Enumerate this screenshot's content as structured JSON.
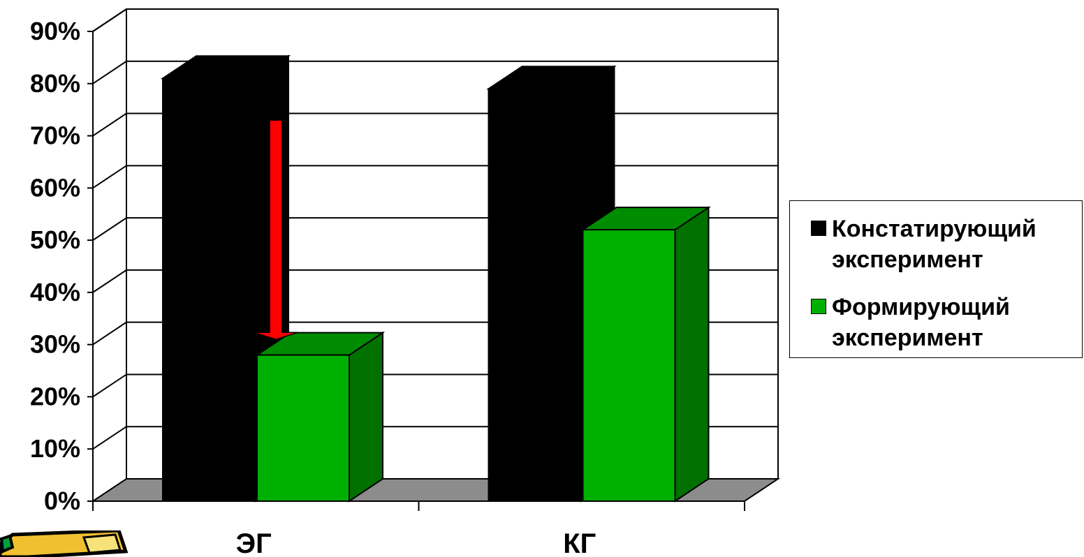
{
  "chart_data": {
    "type": "bar",
    "style": "3d-clustered-column",
    "categories": [
      "ЭГ",
      "КГ"
    ],
    "series": [
      {
        "name": "Констатирующий эксперимент",
        "color": "#000000",
        "side_color": "#000000",
        "values": [
          0.81,
          0.79
        ]
      },
      {
        "name": "Формирующий эксперимент",
        "color": "#00b000",
        "side_color": "#007000",
        "values": [
          0.28,
          0.52
        ]
      }
    ],
    "y_ticks": [
      "0%",
      "10%",
      "20%",
      "30%",
      "40%",
      "50%",
      "60%",
      "70%",
      "80%",
      "90%"
    ],
    "ylim": [
      0,
      0.9
    ],
    "grid": true,
    "legend_position": "right",
    "floor_color": "#8c8c8c",
    "annotation": {
      "type": "down-arrow",
      "color": "#ff0000",
      "from": 0.73,
      "to": 0.31,
      "category": "ЭГ"
    },
    "title": "",
    "xlabel": "",
    "ylabel": ""
  },
  "legend": {
    "items": [
      {
        "label": "Констатирующий эксперимент",
        "color": "#000000"
      },
      {
        "label": "Формирующий эксперимент",
        "color": "#00b000"
      }
    ]
  }
}
